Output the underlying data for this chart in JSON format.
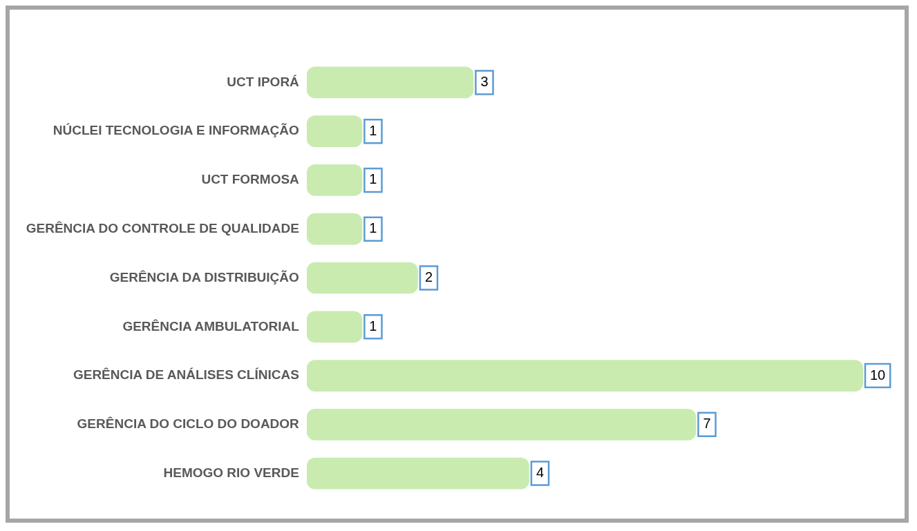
{
  "chart_data": {
    "type": "bar",
    "orientation": "horizontal",
    "categories": [
      "UCT IPORÁ",
      "NÚCLEI TECNOLOGIA E INFORMAÇÃO",
      "UCT FORMOSA",
      "GERÊNCIA DO CONTROLE DE QUALIDADE",
      "GERÊNCIA DA DISTRIBUIÇÃO",
      "GERÊNCIA AMBULATORIAL",
      "GERÊNCIA DE ANÁLISES CLÍNICAS",
      "GERÊNCIA DO CICLO DO DOADOR",
      "HEMOGO RIO VERDE"
    ],
    "values": [
      3,
      1,
      1,
      1,
      2,
      1,
      10,
      7,
      4
    ],
    "color": "#c9ebb0",
    "data_labels": true
  }
}
